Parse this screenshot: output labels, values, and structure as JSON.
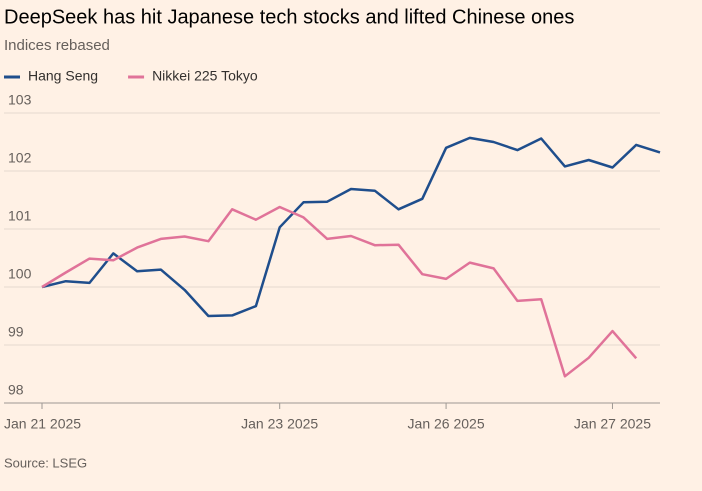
{
  "chart_data": {
    "type": "line",
    "title": "DeepSeek has hit Japanese tech stocks and lifted Chinese ones",
    "subtitle": "Indices rebased",
    "source": "Source: LSEG",
    "categories": [
      "Jan 21 2025",
      null,
      null,
      null,
      null,
      null,
      null,
      null,
      null,
      null,
      "Jan 23 2025",
      null,
      null,
      null,
      null,
      null,
      null,
      "Jan 26 2025",
      null,
      null,
      null,
      null,
      null,
      null,
      "Jan 27 2025",
      null,
      null
    ],
    "series": [
      {
        "name": "Hang Seng",
        "color": "#1f4e8c",
        "values": [
          100.0,
          100.1,
          100.07,
          100.58,
          100.27,
          100.3,
          99.95,
          99.5,
          99.51,
          99.67,
          101.03,
          101.46,
          101.47,
          101.69,
          101.66,
          101.34,
          101.52,
          102.4,
          102.57,
          102.5,
          102.36,
          102.56,
          102.08,
          102.19,
          102.06,
          102.45,
          102.32
        ]
      },
      {
        "name": "Nikkei 225 Tokyo",
        "color": "#e07399",
        "values": [
          100.0,
          100.25,
          100.49,
          100.46,
          100.68,
          100.83,
          100.87,
          100.79,
          101.34,
          101.16,
          101.38,
          101.2,
          100.83,
          100.88,
          100.72,
          100.73,
          100.22,
          100.14,
          100.42,
          100.32,
          99.76,
          99.79,
          98.46,
          98.78,
          99.24,
          98.77,
          null
        ]
      }
    ],
    "ylim": [
      98,
      103
    ],
    "yticks": [
      98,
      99,
      100,
      101,
      102,
      103
    ],
    "grid": true
  }
}
